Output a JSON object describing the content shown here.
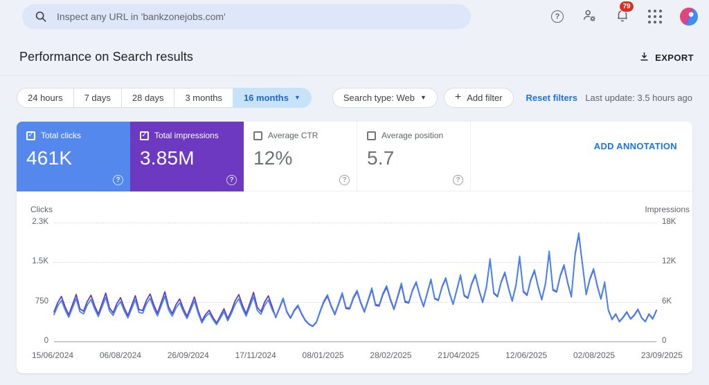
{
  "topbar": {
    "search_placeholder": "Inspect any URL in 'bankzonejobs.com'",
    "notification_count": "79"
  },
  "header": {
    "title": "Performance on Search results",
    "export_label": "EXPORT"
  },
  "filters": {
    "time_ranges": [
      {
        "label": "24 hours",
        "selected": false
      },
      {
        "label": "7 days",
        "selected": false
      },
      {
        "label": "28 days",
        "selected": false
      },
      {
        "label": "3 months",
        "selected": false
      },
      {
        "label": "16 months",
        "selected": true
      }
    ],
    "search_type_label": "Search type: Web",
    "add_filter_label": "Add filter",
    "reset_label": "Reset filters",
    "last_update": "Last update: 3.5 hours ago"
  },
  "metrics": {
    "add_annotation_label": "ADD ANNOTATION",
    "cards": [
      {
        "label": "Total clicks",
        "value": "461K",
        "checked": true,
        "bg": "#5488ed"
      },
      {
        "label": "Total impressions",
        "value": "3.85M",
        "checked": true,
        "bg": "#6c39c0"
      },
      {
        "label": "Average CTR",
        "value": "12%",
        "checked": false,
        "bg": ""
      },
      {
        "label": "Average position",
        "value": "5.7",
        "checked": false,
        "bg": ""
      }
    ]
  },
  "chart_data": {
    "type": "line",
    "left_axis_label": "Clicks",
    "right_axis_label": "Impressions",
    "left_ticks": [
      "2.3K",
      "1.5K",
      "750",
      "0"
    ],
    "right_ticks": [
      "18K",
      "12K",
      "6K",
      "0"
    ],
    "ylim_left": [
      0,
      2300
    ],
    "ylim_right": [
      0,
      18000
    ],
    "grid": "horizontal-dotted",
    "legend_position": "axis-titles-top",
    "x_tick_labels": [
      "15/06/2024",
      "06/08/2024",
      "26/09/2024",
      "17/11/2024",
      "08/01/2025",
      "28/02/2025",
      "21/04/2025",
      "12/06/2025",
      "02/08/2025",
      "23/09/2025"
    ],
    "series": [
      {
        "name": "Impressions",
        "axis": "right",
        "color": "#673ab7",
        "values": [
          4455,
          5882,
          6811,
          5263,
          4025,
          5573,
          7121,
          4954,
          4584,
          6046,
          7000,
          5409,
          4137,
          5728,
          7319,
          5091,
          4334,
          5719,
          6622,
          5117,
          3913,
          5418,
          6923,
          4816,
          4704,
          6209,
          7190,
          5556,
          4248,
          5882,
          7516,
          5229,
          4214,
          5556,
          6433,
          4971,
          3801,
          5263,
          6725,
          4678,
          3096,
          4085,
          4730,
          3655,
          2795,
          3870,
          4945,
          3440,
          4644,
          6132,
          7095,
          5487,
          4197,
          5805,
          7422,
          5160,
          4524,
          5968,
          6906,
          5341,
          3610,
          4993,
          6384,
          4438,
          3504,
          4621,
          5350,
          4134,
          3162,
          2584,
          2280,
          2888,
          4484,
          5920,
          6855,
          5297,
          4051,
          5609,
          7167,
          4986,
          4925,
          6498,
          7524,
          5814,
          4446,
          6156,
          7866,
          5472,
          5366,
          7076,
          8193,
          6331,
          4841,
          6703,
          8565,
          5958,
          5821,
          7685,
          8894,
          6876,
          5259,
          7277,
          9302,
          6468,
          6206,
          8193,
          9486,
          7330,
          5606,
          7762,
          9918,
          6899,
          6545,
          8632,
          9995,
          7723,
          5906,
          8177,
          12320,
          7269,
          6761,
          8924,
          10333,
          7985,
          6106,
          8455,
          12705,
          7515,
          6984,
          9217,
          10672,
          8247,
          6306,
          8732,
          13475,
          7762,
          7484,
          9879,
          11435,
          8840,
          6761,
          13090,
          16170,
          11550,
          7099,
          9363,
          10842,
          8378,
          6406,
          8870,
          4800,
          3360,
          4160,
          3040,
          3680,
          4480,
          3440,
          4000,
          4880,
          3600,
          3040,
          4160,
          3440,
          4720
        ]
      },
      {
        "name": "Clicks",
        "axis": "left",
        "color": "#4285f4",
        "values": [
          518,
          684,
          792,
          612,
          468,
          648,
          828,
          576,
          533,
          703,
          814,
          629,
          481,
          666,
          851,
          592,
          504,
          665,
          770,
          595,
          455,
          630,
          805,
          560,
          547,
          722,
          836,
          646,
          494,
          684,
          874,
          608,
          490,
          646,
          748,
          578,
          442,
          612,
          782,
          544,
          360,
          475,
          550,
          425,
          325,
          450,
          575,
          400,
          540,
          713,
          825,
          638,
          488,
          675,
          863,
          600,
          526,
          694,
          803,
          621,
          475,
          657,
          840,
          584,
          461,
          608,
          704,
          544,
          416,
          340,
          300,
          380,
          590,
          779,
          902,
          697,
          533,
          738,
          943,
          656,
          648,
          855,
          990,
          765,
          585,
          810,
          1035,
          720,
          706,
          931,
          1078,
          833,
          637,
          882,
          1127,
          784,
          756,
          998,
          1155,
          893,
          683,
          945,
          1208,
          840,
          806,
          1064,
          1232,
          952,
          728,
          1008,
          1288,
          896,
          850,
          1121,
          1298,
          1003,
          767,
          1062,
          1600,
          944,
          878,
          1159,
          1342,
          1037,
          793,
          1098,
          1650,
          976,
          907,
          1197,
          1386,
          1071,
          819,
          1134,
          1750,
          1008,
          972,
          1283,
          1485,
          1148,
          878,
          1700,
          2100,
          1500,
          922,
          1216,
          1408,
          1088,
          832,
          1152,
          600,
          420,
          520,
          380,
          460,
          560,
          430,
          500,
          610,
          450,
          380,
          520,
          430,
          590
        ]
      }
    ]
  }
}
